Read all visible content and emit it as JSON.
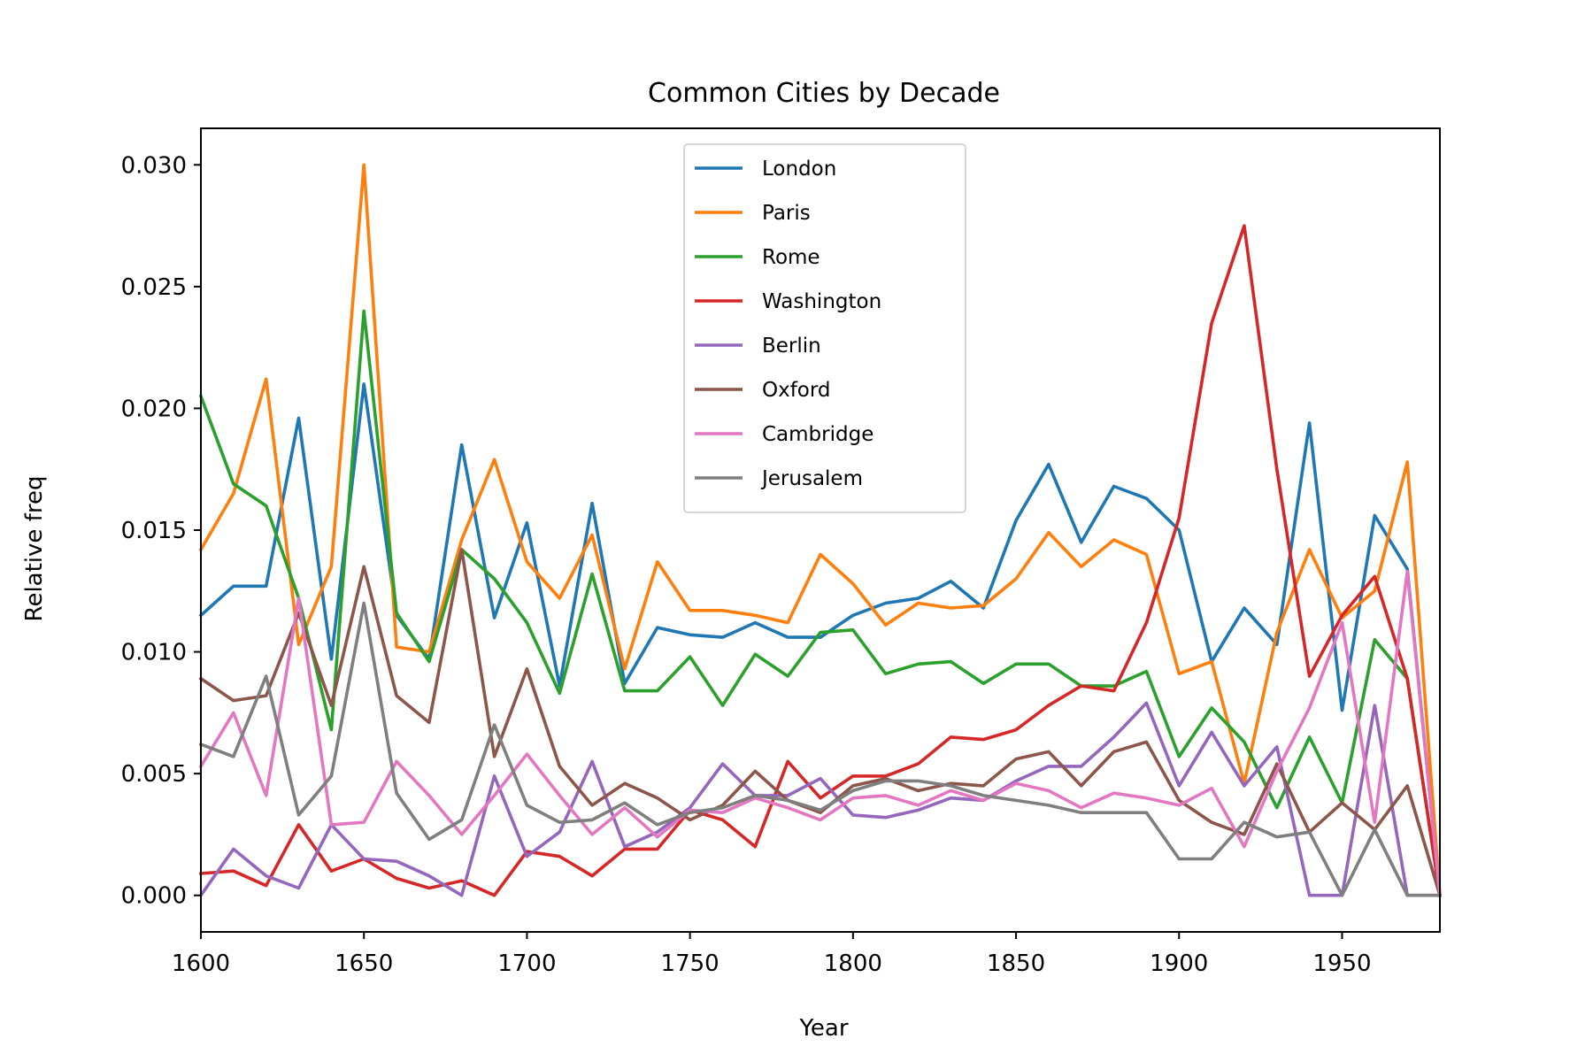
{
  "chart_data": {
    "type": "line",
    "title": "Common Cities by Decade",
    "xlabel": "Year",
    "ylabel": "Relative freq",
    "xlim": [
      1600,
      1980
    ],
    "ylim": [
      -0.0015,
      0.0315
    ],
    "xticks": [
      1600,
      1650,
      1700,
      1750,
      1800,
      1850,
      1900,
      1950
    ],
    "xtick_labels": [
      "1600",
      "1650",
      "1700",
      "1750",
      "1800",
      "1850",
      "1900",
      "1950"
    ],
    "yticks": [
      0.0,
      0.005,
      0.01,
      0.015,
      0.02,
      0.025,
      0.03
    ],
    "ytick_labels": [
      "0.000",
      "0.005",
      "0.010",
      "0.015",
      "0.020",
      "0.025",
      "0.030"
    ],
    "grid": false,
    "legend_position": "upper center",
    "x": [
      1600,
      1610,
      1620,
      1630,
      1640,
      1650,
      1660,
      1670,
      1680,
      1690,
      1700,
      1710,
      1720,
      1730,
      1740,
      1750,
      1760,
      1770,
      1780,
      1790,
      1800,
      1810,
      1820,
      1830,
      1840,
      1850,
      1860,
      1870,
      1880,
      1890,
      1900,
      1910,
      1920,
      1930,
      1940,
      1950,
      1960,
      1970,
      1980
    ],
    "series": [
      {
        "name": "London",
        "color": "#1f77b4",
        "values": [
          0.0115,
          0.0127,
          0.0127,
          0.0196,
          0.0097,
          0.021,
          0.0115,
          0.0097,
          0.0185,
          0.0114,
          0.0153,
          0.0086,
          0.0161,
          0.0087,
          0.011,
          0.0107,
          0.0106,
          0.0112,
          0.0106,
          0.0106,
          0.0115,
          0.012,
          0.0122,
          0.0129,
          0.0118,
          0.0154,
          0.0177,
          0.0145,
          0.0168,
          0.0163,
          0.015,
          0.0096,
          0.0118,
          0.0103,
          0.0194,
          0.0076,
          0.0156,
          0.0134,
          0.0
        ]
      },
      {
        "name": "Paris",
        "color": "#ff7f0e",
        "values": [
          0.0142,
          0.0165,
          0.0212,
          0.0103,
          0.0135,
          0.03,
          0.0102,
          0.01,
          0.0146,
          0.0179,
          0.0137,
          0.0122,
          0.0148,
          0.0093,
          0.0137,
          0.0117,
          0.0117,
          0.0115,
          0.0112,
          0.014,
          0.0128,
          0.0111,
          0.012,
          0.0118,
          0.0119,
          0.013,
          0.0149,
          0.0135,
          0.0146,
          0.014,
          0.0091,
          0.0096,
          0.0046,
          0.0108,
          0.0142,
          0.0114,
          0.0125,
          0.0178,
          0.0
        ]
      },
      {
        "name": "Rome",
        "color": "#2ca02c",
        "values": [
          0.0205,
          0.0169,
          0.016,
          0.0122,
          0.0068,
          0.024,
          0.0116,
          0.0096,
          0.0142,
          0.013,
          0.0112,
          0.0083,
          0.0132,
          0.0084,
          0.0084,
          0.0098,
          0.0078,
          0.0099,
          0.009,
          0.0108,
          0.0109,
          0.0091,
          0.0095,
          0.0096,
          0.0087,
          0.0095,
          0.0095,
          0.0086,
          0.0086,
          0.0092,
          0.0057,
          0.0077,
          0.0063,
          0.0036,
          0.0065,
          0.0038,
          0.0105,
          0.0089,
          0.0
        ]
      },
      {
        "name": "Washington",
        "color": "#d62728",
        "values": [
          0.0009,
          0.001,
          0.0004,
          0.0029,
          0.001,
          0.0015,
          0.0007,
          0.0003,
          0.0006,
          0.0,
          0.0018,
          0.0016,
          0.0008,
          0.0019,
          0.0019,
          0.0035,
          0.0031,
          0.002,
          0.0055,
          0.004,
          0.0049,
          0.0049,
          0.0054,
          0.0065,
          0.0064,
          0.0068,
          0.0078,
          0.0086,
          0.0084,
          0.0112,
          0.0155,
          0.0235,
          0.0275,
          0.0175,
          0.009,
          0.0115,
          0.0131,
          0.0089,
          0.0
        ]
      },
      {
        "name": "Berlin",
        "color": "#9467bd",
        "values": [
          0.0,
          0.0019,
          0.0008,
          0.0003,
          0.0029,
          0.0015,
          0.0014,
          0.0008,
          0.0,
          0.0049,
          0.0016,
          0.0026,
          0.0055,
          0.002,
          0.0026,
          0.0036,
          0.0054,
          0.0041,
          0.0041,
          0.0048,
          0.0033,
          0.0032,
          0.0035,
          0.004,
          0.0039,
          0.0047,
          0.0053,
          0.0053,
          0.0065,
          0.0079,
          0.0045,
          0.0067,
          0.0045,
          0.0061,
          0.0,
          0.0,
          0.0078,
          0.0,
          0.0
        ]
      },
      {
        "name": "Oxford",
        "color": "#8c564b",
        "values": [
          0.0089,
          0.008,
          0.0082,
          0.0116,
          0.0078,
          0.0135,
          0.0082,
          0.0071,
          0.0142,
          0.0057,
          0.0093,
          0.0053,
          0.0037,
          0.0046,
          0.004,
          0.0031,
          0.0037,
          0.0051,
          0.0039,
          0.0034,
          0.0045,
          0.0048,
          0.0043,
          0.0046,
          0.0045,
          0.0056,
          0.0059,
          0.0045,
          0.0059,
          0.0063,
          0.0039,
          0.003,
          0.0025,
          0.0054,
          0.0026,
          0.0038,
          0.0027,
          0.0045,
          0.0
        ]
      },
      {
        "name": "Cambridge",
        "color": "#e377c2",
        "values": [
          0.0053,
          0.0075,
          0.0041,
          0.0122,
          0.0029,
          0.003,
          0.0055,
          0.0041,
          0.0025,
          0.0041,
          0.0058,
          0.0041,
          0.0025,
          0.0036,
          0.0024,
          0.0035,
          0.0034,
          0.004,
          0.0036,
          0.0031,
          0.004,
          0.0041,
          0.0037,
          0.0043,
          0.0039,
          0.0046,
          0.0043,
          0.0036,
          0.0042,
          0.004,
          0.0037,
          0.0044,
          0.002,
          0.0051,
          0.0077,
          0.0112,
          0.003,
          0.0133,
          0.0
        ]
      },
      {
        "name": "Jerusalem",
        "color": "#7f7f7f",
        "values": [
          0.0062,
          0.0057,
          0.009,
          0.0033,
          0.0049,
          0.012,
          0.0042,
          0.0023,
          0.0031,
          0.007,
          0.0037,
          0.003,
          0.0031,
          0.0038,
          0.0029,
          0.0034,
          0.0036,
          0.0041,
          0.0039,
          0.0035,
          0.0043,
          0.0047,
          0.0047,
          0.0045,
          0.0041,
          0.0039,
          0.0037,
          0.0034,
          0.0034,
          0.0034,
          0.0015,
          0.0015,
          0.003,
          0.0024,
          0.0026,
          0.0,
          0.0027,
          0.0,
          0.0
        ]
      }
    ]
  }
}
